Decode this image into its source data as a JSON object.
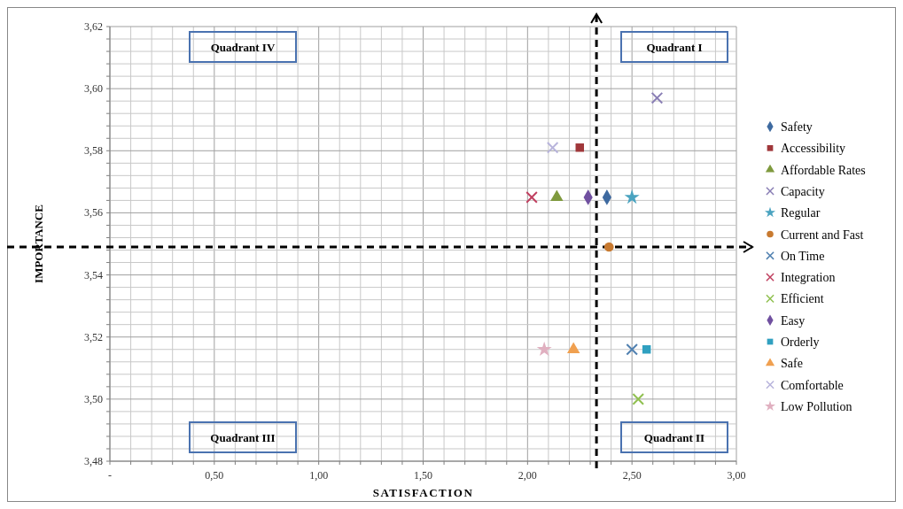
{
  "chart_data": {
    "type": "scatter",
    "xlabel": "SATISFACTION",
    "ylabel": "IMPORTANCE",
    "xlim": [
      0,
      3
    ],
    "ylim": [
      3.48,
      3.62
    ],
    "xticks": [
      {
        "value": 0,
        "label": "-"
      },
      {
        "value": 0.1,
        "label": null
      },
      {
        "value": 0.2,
        "label": null
      },
      {
        "value": 0.3,
        "label": null
      },
      {
        "value": 0.4,
        "label": null
      },
      {
        "value": 0.5,
        "label": "0,50"
      },
      {
        "value": 0.6,
        "label": null
      },
      {
        "value": 0.7,
        "label": null
      },
      {
        "value": 0.8,
        "label": null
      },
      {
        "value": 0.9,
        "label": null
      },
      {
        "value": 1,
        "label": "1,00"
      },
      {
        "value": 1.1,
        "label": null
      },
      {
        "value": 1.2,
        "label": null
      },
      {
        "value": 1.3,
        "label": null
      },
      {
        "value": 1.4,
        "label": null
      },
      {
        "value": 1.5,
        "label": "1,50"
      },
      {
        "value": 1.6,
        "label": null
      },
      {
        "value": 1.7,
        "label": null
      },
      {
        "value": 1.8,
        "label": null
      },
      {
        "value": 1.9,
        "label": null
      },
      {
        "value": 2,
        "label": "2,00"
      },
      {
        "value": 2.1,
        "label": null
      },
      {
        "value": 2.2,
        "label": null
      },
      {
        "value": 2.3,
        "label": null
      },
      {
        "value": 2.4,
        "label": null
      },
      {
        "value": 2.5,
        "label": "2,50"
      },
      {
        "value": 2.6,
        "label": null
      },
      {
        "value": 2.7,
        "label": null
      },
      {
        "value": 2.8,
        "label": null
      },
      {
        "value": 2.9,
        "label": null
      },
      {
        "value": 3,
        "label": "3,00"
      }
    ],
    "yticks": [
      {
        "value": 3.48,
        "label": "3,48"
      },
      {
        "value": 3.484,
        "label": null
      },
      {
        "value": 3.488,
        "label": null
      },
      {
        "value": 3.492,
        "label": null
      },
      {
        "value": 3.496,
        "label": null
      },
      {
        "value": 3.5,
        "label": "3,50"
      },
      {
        "value": 3.504,
        "label": null
      },
      {
        "value": 3.508,
        "label": null
      },
      {
        "value": 3.512,
        "label": null
      },
      {
        "value": 3.516,
        "label": null
      },
      {
        "value": 3.52,
        "label": "3,52"
      },
      {
        "value": 3.524,
        "label": null
      },
      {
        "value": 3.528,
        "label": null
      },
      {
        "value": 3.532,
        "label": null
      },
      {
        "value": 3.536,
        "label": null
      },
      {
        "value": 3.54,
        "label": "3,54"
      },
      {
        "value": 3.544,
        "label": null
      },
      {
        "value": 3.548,
        "label": null
      },
      {
        "value": 3.552,
        "label": null
      },
      {
        "value": 3.556,
        "label": null
      },
      {
        "value": 3.56,
        "label": "3,56"
      },
      {
        "value": 3.564,
        "label": null
      },
      {
        "value": 3.568,
        "label": null
      },
      {
        "value": 3.572,
        "label": null
      },
      {
        "value": 3.576,
        "label": null
      },
      {
        "value": 3.58,
        "label": "3,58"
      },
      {
        "value": 3.584,
        "label": null
      },
      {
        "value": 3.588,
        "label": null
      },
      {
        "value": 3.592,
        "label": null
      },
      {
        "value": 3.596,
        "label": null
      },
      {
        "value": 3.6,
        "label": "3,60"
      },
      {
        "value": 3.604,
        "label": null
      },
      {
        "value": 3.608,
        "label": null
      },
      {
        "value": 3.612,
        "label": null
      },
      {
        "value": 3.616,
        "label": null
      },
      {
        "value": 3.62,
        "label": "3,62"
      }
    ],
    "grid": true,
    "legend": "right",
    "series": [
      {
        "name": "Safety",
        "color": "#3e6aa0",
        "marker": "diamond",
        "x": [
          2.38
        ],
        "values": [
          3.565
        ]
      },
      {
        "name": "Accessibility",
        "color": "#a0373a",
        "marker": "square",
        "x": [
          2.25
        ],
        "values": [
          3.581
        ]
      },
      {
        "name": "Affordable Rates",
        "color": "#7f9a3e",
        "marker": "triangle",
        "x": [
          2.14
        ],
        "values": [
          3.565
        ]
      },
      {
        "name": "Capacity",
        "color": "#8a7fb5",
        "marker": "cross",
        "x": [
          2.62
        ],
        "values": [
          3.597
        ]
      },
      {
        "name": "Regular",
        "color": "#4aa3c0",
        "marker": "star",
        "x": [
          2.5
        ],
        "values": [
          3.565
        ]
      },
      {
        "name": "Current and Fast",
        "color": "#c87a30",
        "marker": "circle",
        "x": [
          2.39
        ],
        "values": [
          3.549
        ]
      },
      {
        "name": "On Time",
        "color": "#5080b0",
        "marker": "cross",
        "x": [
          2.5
        ],
        "values": [
          3.516
        ]
      },
      {
        "name": "Integration",
        "color": "#c04060",
        "marker": "cross",
        "x": [
          2.02
        ],
        "values": [
          3.565
        ]
      },
      {
        "name": "Efficient",
        "color": "#90c050",
        "marker": "cross",
        "x": [
          2.53
        ],
        "values": [
          3.5
        ]
      },
      {
        "name": "Easy",
        "color": "#7050a0",
        "marker": "diamond",
        "x": [
          2.29
        ],
        "values": [
          3.565
        ]
      },
      {
        "name": "Orderly",
        "color": "#30a0c0",
        "marker": "square",
        "x": [
          2.57
        ],
        "values": [
          3.516
        ]
      },
      {
        "name": "Safe",
        "color": "#f0a050",
        "marker": "triangle",
        "x": [
          2.22
        ],
        "values": [
          3.516
        ]
      },
      {
        "name": "Comfortable",
        "color": "#b8b4dc",
        "marker": "cross",
        "x": [
          2.12
        ],
        "values": [
          3.581
        ]
      },
      {
        "name": "Low Pollution",
        "color": "#e0b0c0",
        "marker": "star",
        "x": [
          2.08
        ],
        "values": [
          3.516
        ]
      }
    ],
    "ref_lines": [
      {
        "axis": "x",
        "value": 2.33,
        "color": "#000000",
        "line_style": "dashed"
      },
      {
        "axis": "y",
        "value": 3.549,
        "color": "#000000",
        "line_style": "dashed"
      }
    ],
    "annotations": [
      "Quadrant IV",
      "Quadrant I",
      "Quadrant III",
      "Quadrant II"
    ]
  }
}
